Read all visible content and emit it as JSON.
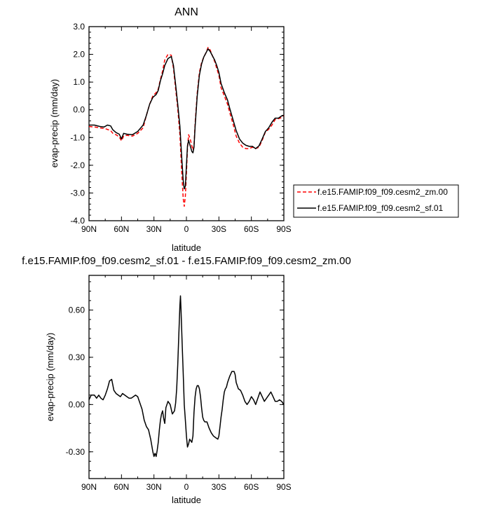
{
  "chart_data": [
    {
      "type": "line",
      "title": "ANN",
      "xlabel": "latitude",
      "ylabel": "evap-precip (mm/day)",
      "xlim": [
        90,
        -90
      ],
      "ylim": [
        -4.0,
        3.0
      ],
      "x_ticks": [
        90,
        60,
        30,
        0,
        -30,
        -60,
        -90
      ],
      "x_ticklabels": [
        "90N",
        "60N",
        "30N",
        "0",
        "30S",
        "60S",
        "90S"
      ],
      "y_ticks": [
        -4.0,
        -3.0,
        -2.0,
        -1.0,
        0.0,
        1.0,
        2.0,
        3.0
      ],
      "y_ticklabels": [
        "-4.0",
        "-3.0",
        "-2.0",
        "-1.0",
        "0.0",
        "1.0",
        "2.0",
        "3.0"
      ],
      "grid": false,
      "legend_position": "right",
      "series": [
        {
          "name": "f.e15.FAMIP.f09_f09.cesm2_zm.00",
          "color": "#ff0000",
          "dash": "dashed",
          "points": [
            [
              90,
              -0.6
            ],
            [
              85,
              -0.62
            ],
            [
              80,
              -0.65
            ],
            [
              75,
              -0.68
            ],
            [
              70,
              -0.75
            ],
            [
              68,
              -0.85
            ],
            [
              65,
              -0.9
            ],
            [
              62,
              -0.98
            ],
            [
              60,
              -1.12
            ],
            [
              58,
              -0.95
            ],
            [
              55,
              -0.92
            ],
            [
              50,
              -0.95
            ],
            [
              45,
              -0.85
            ],
            [
              40,
              -0.65
            ],
            [
              37,
              -0.2
            ],
            [
              34,
              0.2
            ],
            [
              31,
              0.5
            ],
            [
              28,
              0.62
            ],
            [
              26,
              0.75
            ],
            [
              24,
              1.1
            ],
            [
              22,
              1.4
            ],
            [
              20,
              1.8
            ],
            [
              17,
              2.0
            ],
            [
              14,
              1.97
            ],
            [
              12,
              1.5
            ],
            [
              10,
              0.75
            ],
            [
              8,
              0.05
            ],
            [
              6,
              -0.9
            ],
            [
              4.5,
              -2.1
            ],
            [
              3,
              -3.2
            ],
            [
              2,
              -3.48
            ],
            [
              1,
              -3.1
            ],
            [
              0,
              -2.3
            ],
            [
              -1,
              -1.4
            ],
            [
              -2,
              -0.9
            ],
            [
              -3.5,
              -1.05
            ],
            [
              -5,
              -1.3
            ],
            [
              -6,
              -1.45
            ],
            [
              -7,
              -1.3
            ],
            [
              -8,
              -0.5
            ],
            [
              -10,
              0.6
            ],
            [
              -12,
              1.35
            ],
            [
              -14,
              1.7
            ],
            [
              -16,
              1.9
            ],
            [
              -18,
              2.05
            ],
            [
              -20,
              2.25
            ],
            [
              -22,
              2.15
            ],
            [
              -24,
              1.95
            ],
            [
              -26,
              1.75
            ],
            [
              -28,
              1.5
            ],
            [
              -30,
              1.25
            ],
            [
              -32,
              0.8
            ],
            [
              -35,
              0.5
            ],
            [
              -38,
              0.2
            ],
            [
              -40,
              -0.1
            ],
            [
              -43,
              -0.5
            ],
            [
              -46,
              -0.95
            ],
            [
              -49,
              -1.2
            ],
            [
              -52,
              -1.35
            ],
            [
              -55,
              -1.4
            ],
            [
              -58,
              -1.4
            ],
            [
              -61,
              -1.35
            ],
            [
              -64,
              -1.4
            ],
            [
              -67,
              -1.35
            ],
            [
              -70,
              -1.1
            ],
            [
              -73,
              -0.8
            ],
            [
              -76,
              -0.7
            ],
            [
              -79,
              -0.55
            ],
            [
              -82,
              -0.35
            ],
            [
              -85,
              -0.32
            ],
            [
              -88,
              -0.28
            ],
            [
              -90,
              -0.2
            ]
          ]
        },
        {
          "name": "f.e15.FAMIP.f09_f09.cesm2_sf.01",
          "color": "#000000",
          "dash": "solid",
          "points": [
            [
              90,
              -0.55
            ],
            [
              85,
              -0.55
            ],
            [
              80,
              -0.6
            ],
            [
              76,
              -0.62
            ],
            [
              73,
              -0.55
            ],
            [
              70,
              -0.58
            ],
            [
              68,
              -0.72
            ],
            [
              65,
              -0.82
            ],
            [
              62,
              -0.88
            ],
            [
              60,
              -1.05
            ],
            [
              58,
              -0.85
            ],
            [
              55,
              -0.88
            ],
            [
              50,
              -0.9
            ],
            [
              45,
              -0.78
            ],
            [
              40,
              -0.55
            ],
            [
              37,
              -0.2
            ],
            [
              34,
              0.2
            ],
            [
              31,
              0.45
            ],
            [
              28,
              0.55
            ],
            [
              26,
              0.7
            ],
            [
              24,
              1.05
            ],
            [
              22,
              1.3
            ],
            [
              20,
              1.6
            ],
            [
              17,
              1.85
            ],
            [
              14,
              1.92
            ],
            [
              12,
              1.6
            ],
            [
              10,
              0.9
            ],
            [
              8,
              0.2
            ],
            [
              6,
              -0.6
            ],
            [
              4.5,
              -1.6
            ],
            [
              3,
              -2.55
            ],
            [
              2,
              -2.85
            ],
            [
              1,
              -2.75
            ],
            [
              0,
              -2.0
            ],
            [
              -1,
              -1.3
            ],
            [
              -2,
              -1.1
            ],
            [
              -3.5,
              -1.3
            ],
            [
              -5,
              -1.5
            ],
            [
              -6,
              -1.55
            ],
            [
              -7,
              -1.35
            ],
            [
              -8,
              -0.6
            ],
            [
              -10,
              0.5
            ],
            [
              -12,
              1.25
            ],
            [
              -14,
              1.65
            ],
            [
              -16,
              1.9
            ],
            [
              -18,
              2.05
            ],
            [
              -20,
              2.2
            ],
            [
              -22,
              2.1
            ],
            [
              -24,
              1.95
            ],
            [
              -26,
              1.8
            ],
            [
              -28,
              1.6
            ],
            [
              -30,
              1.35
            ],
            [
              -32,
              0.95
            ],
            [
              -35,
              0.62
            ],
            [
              -38,
              0.35
            ],
            [
              -40,
              0.05
            ],
            [
              -43,
              -0.35
            ],
            [
              -46,
              -0.75
            ],
            [
              -49,
              -1.05
            ],
            [
              -52,
              -1.2
            ],
            [
              -55,
              -1.28
            ],
            [
              -58,
              -1.32
            ],
            [
              -61,
              -1.32
            ],
            [
              -64,
              -1.4
            ],
            [
              -67,
              -1.3
            ],
            [
              -70,
              -1.05
            ],
            [
              -73,
              -0.78
            ],
            [
              -76,
              -0.65
            ],
            [
              -79,
              -0.45
            ],
            [
              -82,
              -0.3
            ],
            [
              -85,
              -0.3
            ],
            [
              -88,
              -0.22
            ],
            [
              -90,
              -0.2
            ]
          ]
        }
      ]
    },
    {
      "type": "line",
      "title": "f.e15.FAMIP.f09_f09.cesm2_sf.01 - f.e15.FAMIP.f09_f09.cesm2_zm.00",
      "xlabel": "latitude",
      "ylabel": "evap-precip (mm/day)",
      "xlim": [
        90,
        -90
      ],
      "ylim": [
        -0.47,
        0.82
      ],
      "x_ticks": [
        90,
        60,
        30,
        0,
        -30,
        -60,
        -90
      ],
      "x_ticklabels": [
        "90N",
        "60N",
        "30N",
        "0",
        "30S",
        "60S",
        "90S"
      ],
      "y_ticks": [
        -0.3,
        0.0,
        0.3,
        0.6
      ],
      "y_ticklabels": [
        "-0.30",
        "0.00",
        "0.30",
        "0.60"
      ],
      "grid": false,
      "series": [
        {
          "color": "#000000",
          "dash": "solid",
          "points": [
            [
              90,
              0.03
            ],
            [
              88,
              0.06
            ],
            [
              85,
              0.06
            ],
            [
              83,
              0.04
            ],
            [
              81,
              0.06
            ],
            [
              79,
              0.04
            ],
            [
              77,
              0.03
            ],
            [
              75,
              0.06
            ],
            [
              73,
              0.1
            ],
            [
              71,
              0.15
            ],
            [
              69,
              0.16
            ],
            [
              67,
              0.09
            ],
            [
              65,
              0.07
            ],
            [
              63,
              0.06
            ],
            [
              61,
              0.05
            ],
            [
              59,
              0.07
            ],
            [
              57,
              0.06
            ],
            [
              55,
              0.05
            ],
            [
              53,
              0.04
            ],
            [
              51,
              0.04
            ],
            [
              49,
              0.05
            ],
            [
              47,
              0.06
            ],
            [
              45,
              0.05
            ],
            [
              43,
              0.01
            ],
            [
              41,
              -0.03
            ],
            [
              39,
              -0.1
            ],
            [
              37,
              -0.14
            ],
            [
              35,
              -0.16
            ],
            [
              33,
              -0.22
            ],
            [
              31,
              -0.3
            ],
            [
              30,
              -0.33
            ],
            [
              29,
              -0.31
            ],
            [
              28,
              -0.33
            ],
            [
              27,
              -0.29
            ],
            [
              26,
              -0.24
            ],
            [
              25,
              -0.16
            ],
            [
              24,
              -0.1
            ],
            [
              23,
              -0.06
            ],
            [
              22,
              -0.04
            ],
            [
              21,
              -0.09
            ],
            [
              20,
              -0.12
            ],
            [
              19,
              -0.02
            ],
            [
              17,
              0.02
            ],
            [
              15,
              0.0
            ],
            [
              13,
              -0.06
            ],
            [
              11,
              -0.04
            ],
            [
              10,
              0.01
            ],
            [
              9,
              0.1
            ],
            [
              8,
              0.25
            ],
            [
              7,
              0.45
            ],
            [
              6,
              0.63
            ],
            [
              5.5,
              0.69
            ],
            [
              5,
              0.6
            ],
            [
              4,
              0.4
            ],
            [
              3,
              0.2
            ],
            [
              2,
              0.0
            ],
            [
              1,
              -0.1
            ],
            [
              0,
              -0.2
            ],
            [
              -1,
              -0.27
            ],
            [
              -2,
              -0.25
            ],
            [
              -3,
              -0.22
            ],
            [
              -4,
              -0.23
            ],
            [
              -5,
              -0.24
            ],
            [
              -6,
              -0.2
            ],
            [
              -7,
              -0.05
            ],
            [
              -8,
              0.05
            ],
            [
              -9,
              0.1
            ],
            [
              -10,
              0.12
            ],
            [
              -11,
              0.12
            ],
            [
              -12,
              0.1
            ],
            [
              -13,
              0.05
            ],
            [
              -14,
              -0.02
            ],
            [
              -15,
              -0.08
            ],
            [
              -16,
              -0.1
            ],
            [
              -17,
              -0.11
            ],
            [
              -19,
              -0.11
            ],
            [
              -21,
              -0.15
            ],
            [
              -23,
              -0.18
            ],
            [
              -25,
              -0.2
            ],
            [
              -27,
              -0.21
            ],
            [
              -29,
              -0.22
            ],
            [
              -30,
              -0.2
            ],
            [
              -31,
              -0.14
            ],
            [
              -32,
              -0.08
            ],
            [
              -33,
              -0.03
            ],
            [
              -34,
              0.03
            ],
            [
              -35,
              0.08
            ],
            [
              -36,
              0.1
            ],
            [
              -37,
              0.11
            ],
            [
              -38,
              0.14
            ],
            [
              -40,
              0.18
            ],
            [
              -42,
              0.21
            ],
            [
              -44,
              0.21
            ],
            [
              -45,
              0.19
            ],
            [
              -46,
              0.14
            ],
            [
              -48,
              0.1
            ],
            [
              -50,
              0.09
            ],
            [
              -52,
              0.06
            ],
            [
              -54,
              0.02
            ],
            [
              -56,
              0.0
            ],
            [
              -58,
              0.02
            ],
            [
              -60,
              0.05
            ],
            [
              -62,
              0.03
            ],
            [
              -64,
              0.0
            ],
            [
              -66,
              0.04
            ],
            [
              -68,
              0.08
            ],
            [
              -70,
              0.05
            ],
            [
              -72,
              0.02
            ],
            [
              -74,
              0.04
            ],
            [
              -76,
              0.06
            ],
            [
              -78,
              0.08
            ],
            [
              -80,
              0.05
            ],
            [
              -82,
              0.02
            ],
            [
              -84,
              0.02
            ],
            [
              -86,
              0.03
            ],
            [
              -88,
              0.02
            ],
            [
              -90,
              0.0
            ]
          ]
        }
      ]
    }
  ]
}
